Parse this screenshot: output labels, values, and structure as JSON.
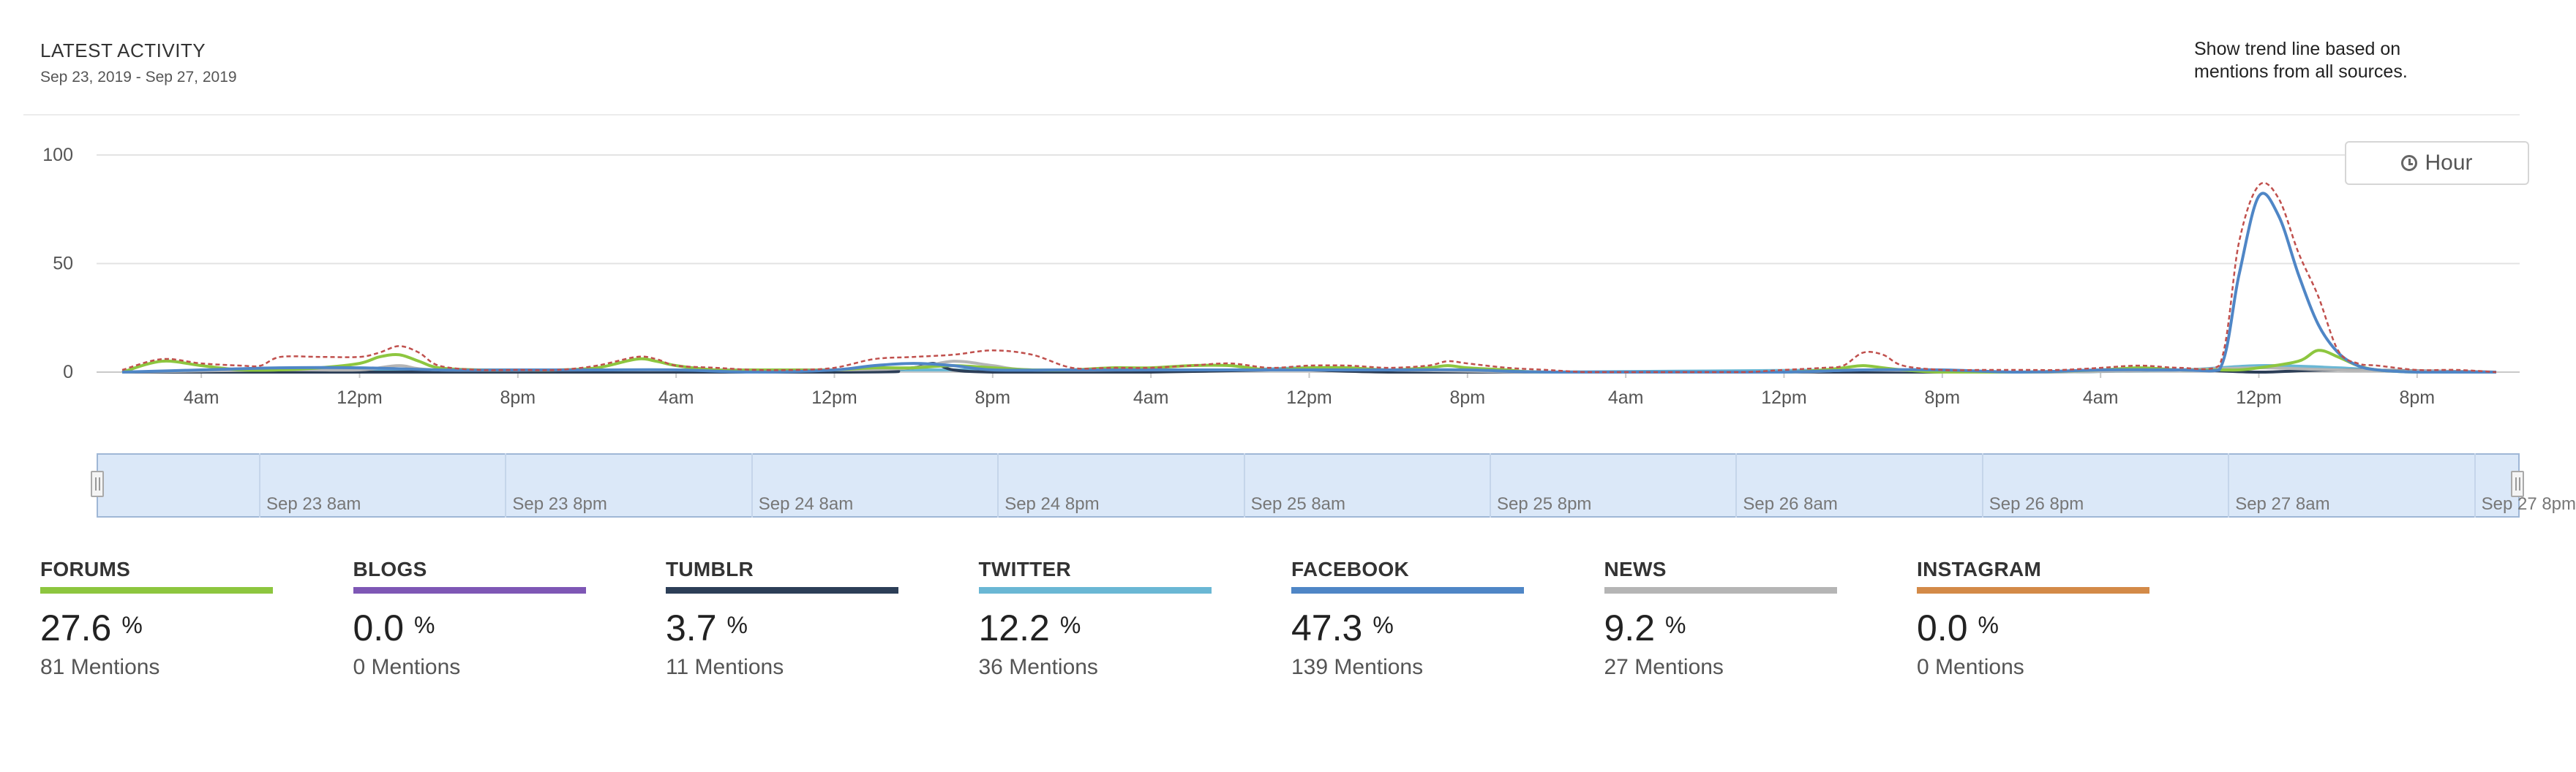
{
  "header": {
    "title": "LATEST ACTIVITY",
    "date_range": "Sep 23, 2019 - Sep 27, 2019",
    "trend_note": "Show trend line based on mentions from all sources."
  },
  "controls": {
    "interval_label": "Hour",
    "interval_icon": "clock-icon"
  },
  "chart_data": {
    "type": "line",
    "title": "LATEST ACTIVITY",
    "xlabel": "",
    "ylabel": "",
    "ylim": [
      0,
      100
    ],
    "yticks": [
      0,
      50,
      100
    ],
    "grid": true,
    "x_start_hour": 0,
    "x_end_hour": 120,
    "x_tick_hours": [
      4,
      12,
      20,
      28,
      36,
      44,
      52,
      60,
      68,
      76,
      84,
      92,
      100,
      108,
      116
    ],
    "x_tick_labels": [
      "4am",
      "12pm",
      "8pm",
      "4am",
      "12pm",
      "8pm",
      "4am",
      "12pm",
      "8pm",
      "4am",
      "12pm",
      "8pm",
      "4am",
      "12pm",
      "8pm"
    ],
    "series": [
      {
        "name": "All sources (trend)",
        "color": "#c0504d",
        "dashed": true,
        "points": [
          [
            0,
            1
          ],
          [
            2,
            6
          ],
          [
            4,
            4
          ],
          [
            6,
            3
          ],
          [
            7,
            3
          ],
          [
            8,
            7
          ],
          [
            10,
            7
          ],
          [
            12,
            7
          ],
          [
            13,
            9
          ],
          [
            14,
            12
          ],
          [
            15,
            9
          ],
          [
            16,
            3
          ],
          [
            18,
            1
          ],
          [
            20,
            1
          ],
          [
            22,
            1
          ],
          [
            24,
            3
          ],
          [
            26,
            7
          ],
          [
            27,
            6
          ],
          [
            28,
            3
          ],
          [
            30,
            2
          ],
          [
            32,
            1
          ],
          [
            34,
            1
          ],
          [
            36,
            2
          ],
          [
            38,
            6
          ],
          [
            40,
            7
          ],
          [
            42,
            8
          ],
          [
            44,
            10
          ],
          [
            46,
            8
          ],
          [
            48,
            2
          ],
          [
            50,
            2
          ],
          [
            52,
            2
          ],
          [
            54,
            3
          ],
          [
            56,
            4
          ],
          [
            58,
            2
          ],
          [
            60,
            3
          ],
          [
            62,
            3
          ],
          [
            64,
            2
          ],
          [
            66,
            3
          ],
          [
            67,
            5
          ],
          [
            68,
            4
          ],
          [
            70,
            2
          ],
          [
            72,
            1
          ],
          [
            74,
            0
          ],
          [
            76,
            0
          ],
          [
            78,
            0
          ],
          [
            80,
            0
          ],
          [
            82,
            0
          ],
          [
            84,
            1
          ],
          [
            86,
            2
          ],
          [
            87,
            3
          ],
          [
            88,
            9
          ],
          [
            89,
            8
          ],
          [
            90,
            3
          ],
          [
            92,
            1
          ],
          [
            94,
            1
          ],
          [
            96,
            1
          ],
          [
            98,
            1
          ],
          [
            100,
            2
          ],
          [
            102,
            3
          ],
          [
            104,
            2
          ],
          [
            106,
            3
          ],
          [
            107,
            60
          ],
          [
            108,
            86
          ],
          [
            109,
            80
          ],
          [
            110,
            55
          ],
          [
            111,
            35
          ],
          [
            112,
            10
          ],
          [
            113,
            4
          ],
          [
            114,
            3
          ],
          [
            116,
            1
          ],
          [
            118,
            1
          ],
          [
            120,
            0
          ]
        ]
      },
      {
        "name": "Facebook",
        "color": "#4f86c6",
        "dashed": false,
        "points": [
          [
            0,
            0
          ],
          [
            4,
            1
          ],
          [
            8,
            2
          ],
          [
            12,
            2
          ],
          [
            16,
            1
          ],
          [
            20,
            1
          ],
          [
            24,
            1
          ],
          [
            28,
            1
          ],
          [
            32,
            0
          ],
          [
            36,
            1
          ],
          [
            38,
            3
          ],
          [
            40,
            4
          ],
          [
            42,
            3
          ],
          [
            44,
            1
          ],
          [
            48,
            1
          ],
          [
            52,
            1
          ],
          [
            56,
            1
          ],
          [
            60,
            1
          ],
          [
            64,
            1
          ],
          [
            68,
            1
          ],
          [
            72,
            0
          ],
          [
            80,
            0
          ],
          [
            84,
            0
          ],
          [
            88,
            1
          ],
          [
            92,
            1
          ],
          [
            96,
            0
          ],
          [
            100,
            1
          ],
          [
            104,
            1
          ],
          [
            106,
            1
          ],
          [
            107,
            45
          ],
          [
            108,
            81
          ],
          [
            109,
            72
          ],
          [
            110,
            45
          ],
          [
            111,
            22
          ],
          [
            112,
            9
          ],
          [
            113,
            3
          ],
          [
            114,
            1
          ],
          [
            116,
            0
          ],
          [
            120,
            0
          ]
        ]
      },
      {
        "name": "Forums",
        "color": "#8dc63f",
        "dashed": false,
        "points": [
          [
            0,
            0
          ],
          [
            2,
            5
          ],
          [
            4,
            3
          ],
          [
            6,
            1
          ],
          [
            8,
            1
          ],
          [
            10,
            2
          ],
          [
            12,
            4
          ],
          [
            13,
            7
          ],
          [
            14,
            8
          ],
          [
            15,
            5
          ],
          [
            16,
            2
          ],
          [
            18,
            1
          ],
          [
            20,
            1
          ],
          [
            22,
            1
          ],
          [
            24,
            2
          ],
          [
            26,
            6
          ],
          [
            27,
            5
          ],
          [
            28,
            3
          ],
          [
            30,
            1
          ],
          [
            32,
            1
          ],
          [
            34,
            1
          ],
          [
            36,
            1
          ],
          [
            38,
            2
          ],
          [
            40,
            2
          ],
          [
            42,
            3
          ],
          [
            44,
            2
          ],
          [
            46,
            1
          ],
          [
            48,
            1
          ],
          [
            50,
            2
          ],
          [
            52,
            2
          ],
          [
            54,
            3
          ],
          [
            56,
            3
          ],
          [
            58,
            1
          ],
          [
            60,
            2
          ],
          [
            62,
            2
          ],
          [
            64,
            1
          ],
          [
            66,
            2
          ],
          [
            67,
            3
          ],
          [
            68,
            2
          ],
          [
            70,
            1
          ],
          [
            72,
            0
          ],
          [
            80,
            0
          ],
          [
            84,
            0
          ],
          [
            86,
            1
          ],
          [
            87,
            2
          ],
          [
            88,
            3
          ],
          [
            89,
            2
          ],
          [
            90,
            1
          ],
          [
            92,
            0
          ],
          [
            96,
            0
          ],
          [
            100,
            1
          ],
          [
            102,
            2
          ],
          [
            104,
            1
          ],
          [
            106,
            1
          ],
          [
            107,
            1
          ],
          [
            108,
            2
          ],
          [
            110,
            5
          ],
          [
            111,
            10
          ],
          [
            112,
            7
          ],
          [
            113,
            3
          ],
          [
            114,
            1
          ],
          [
            116,
            0
          ],
          [
            120,
            0
          ]
        ]
      },
      {
        "name": "News",
        "color": "#b5b5b5",
        "dashed": false,
        "points": [
          [
            0,
            0
          ],
          [
            8,
            1
          ],
          [
            12,
            1
          ],
          [
            14,
            3
          ],
          [
            16,
            1
          ],
          [
            24,
            1
          ],
          [
            36,
            1
          ],
          [
            40,
            2
          ],
          [
            42,
            5
          ],
          [
            44,
            3
          ],
          [
            46,
            1
          ],
          [
            52,
            1
          ],
          [
            60,
            1
          ],
          [
            64,
            1
          ],
          [
            72,
            0
          ],
          [
            84,
            0
          ],
          [
            88,
            1
          ],
          [
            96,
            0
          ],
          [
            104,
            1
          ],
          [
            108,
            2
          ],
          [
            112,
            1
          ],
          [
            120,
            0
          ]
        ]
      },
      {
        "name": "Tumblr",
        "color": "#2c3e57",
        "dashed": false,
        "points": [
          [
            0,
            0
          ],
          [
            36,
            0
          ],
          [
            38,
            1
          ],
          [
            40,
            2
          ],
          [
            41,
            4
          ],
          [
            42,
            1
          ],
          [
            44,
            0
          ],
          [
            48,
            0
          ],
          [
            52,
            0
          ],
          [
            58,
            1
          ],
          [
            60,
            1
          ],
          [
            64,
            0
          ],
          [
            72,
            0
          ],
          [
            96,
            0
          ],
          [
            104,
            1
          ],
          [
            108,
            0
          ],
          [
            112,
            1
          ],
          [
            120,
            0
          ]
        ]
      },
      {
        "name": "Twitter",
        "color": "#6ab7d4",
        "dashed": false,
        "points": [
          [
            0,
            0
          ],
          [
            8,
            1
          ],
          [
            12,
            1
          ],
          [
            16,
            1
          ],
          [
            24,
            1
          ],
          [
            32,
            1
          ],
          [
            36,
            1
          ],
          [
            40,
            1
          ],
          [
            44,
            1
          ],
          [
            48,
            1
          ],
          [
            56,
            1
          ],
          [
            60,
            2
          ],
          [
            64,
            1
          ],
          [
            72,
            0
          ],
          [
            88,
            1
          ],
          [
            96,
            0
          ],
          [
            104,
            1
          ],
          [
            108,
            3
          ],
          [
            112,
            2
          ],
          [
            116,
            0
          ],
          [
            120,
            0
          ]
        ]
      }
    ]
  },
  "navigator": {
    "labels": [
      "Sep 23 8am",
      "Sep 23 8pm",
      "Sep 24 8am",
      "Sep 24 8pm",
      "Sep 25 8am",
      "Sep 25 8pm",
      "Sep 26 8am",
      "Sep 26 8pm",
      "Sep 27 8am",
      "Sep 27 8pm"
    ]
  },
  "sources": [
    {
      "name": "FORUMS",
      "color": "#8dc63f",
      "percent": "27.6",
      "unit": "%",
      "mentions": "81 Mentions"
    },
    {
      "name": "BLOGS",
      "color": "#7e57b5",
      "percent": "0.0",
      "unit": "%",
      "mentions": "0 Mentions"
    },
    {
      "name": "TUMBLR",
      "color": "#2c3e57",
      "percent": "3.7",
      "unit": "%",
      "mentions": "11 Mentions"
    },
    {
      "name": "TWITTER",
      "color": "#6ab7d4",
      "percent": "12.2",
      "unit": "%",
      "mentions": "36 Mentions"
    },
    {
      "name": "FACEBOOK",
      "color": "#4f86c6",
      "percent": "47.3",
      "unit": "%",
      "mentions": "139 Mentions"
    },
    {
      "name": "NEWS",
      "color": "#b5b5b5",
      "percent": "9.2",
      "unit": "%",
      "mentions": "27 Mentions"
    },
    {
      "name": "INSTAGRAM",
      "color": "#d38a48",
      "percent": "0.0",
      "unit": "%",
      "mentions": "0 Mentions"
    }
  ]
}
